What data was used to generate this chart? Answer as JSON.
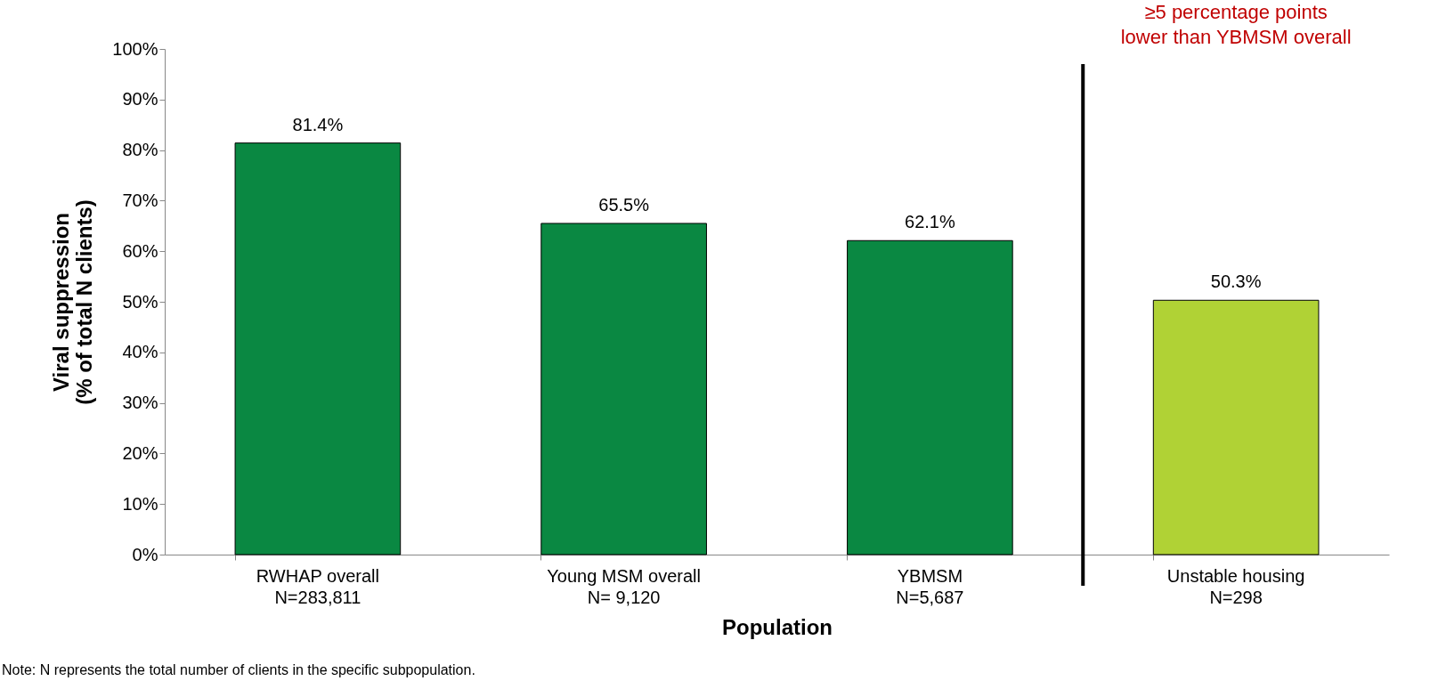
{
  "chart_data": {
    "type": "bar",
    "xlabel": "Population",
    "ylabel": "Viral suppression\n(% of total N clients)",
    "categories": [
      "RWHAP overall\nN=283,811",
      "Young MSM overall\nN= 9,120",
      "YBMSM\nN=5,687",
      "Unstable housing\nN=298"
    ],
    "values": [
      81.4,
      65.5,
      62.1,
      50.3
    ],
    "colors": [
      "#0a8842",
      "#0a8842",
      "#0a8842",
      "#b0d235"
    ],
    "value_labels": [
      "81.4%",
      "65.5%",
      "62.1%",
      "50.3%"
    ],
    "ylim": [
      0,
      100
    ],
    "yticks": [
      {
        "value": 0,
        "label": "0%"
      },
      {
        "value": 10,
        "label": "10%"
      },
      {
        "value": 20,
        "label": "20%"
      },
      {
        "value": 30,
        "label": "30%"
      },
      {
        "value": 40,
        "label": "40%"
      },
      {
        "value": 50,
        "label": "50%"
      },
      {
        "value": 60,
        "label": "60%"
      },
      {
        "value": 70,
        "label": "70%"
      },
      {
        "value": 80,
        "label": "80%"
      },
      {
        "value": 90,
        "label": "90%"
      },
      {
        "value": 100,
        "label": "100%"
      }
    ],
    "grid": false,
    "legend": false,
    "annotations": [
      "≥5 percentage points lower than YBMSM overall",
      "Note: N represents the total number of clients in the specific subpopulation."
    ]
  }
}
